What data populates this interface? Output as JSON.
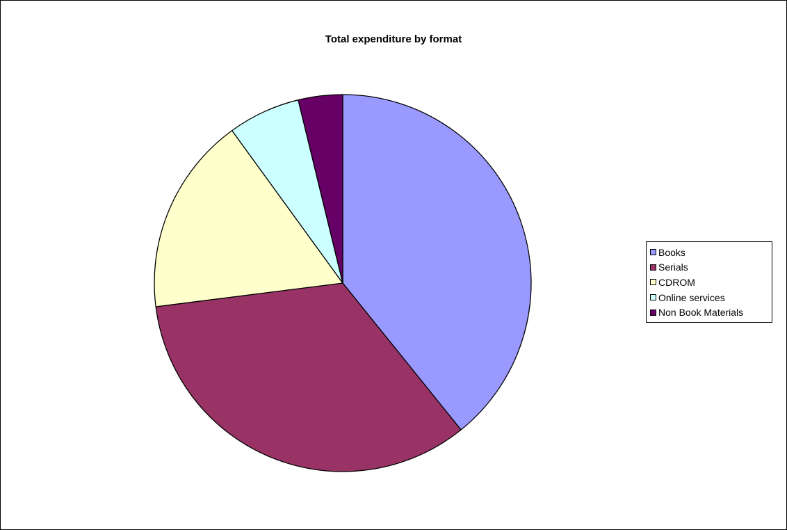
{
  "chart_data": {
    "type": "pie",
    "title": "Total expenditure by format",
    "categories": [
      "Books",
      "Serials",
      "CDROM",
      "Online services",
      "Non Book Materials"
    ],
    "values": [
      39.2,
      33.8,
      17.0,
      6.2,
      3.8
    ],
    "unit": "percent (estimated share)",
    "colors": [
      "#9999FF",
      "#993366",
      "#FFFFCC",
      "#CCFFFF",
      "#660066"
    ],
    "start_angle_deg": 0,
    "direction": "clockwise",
    "legend_position": "right"
  }
}
